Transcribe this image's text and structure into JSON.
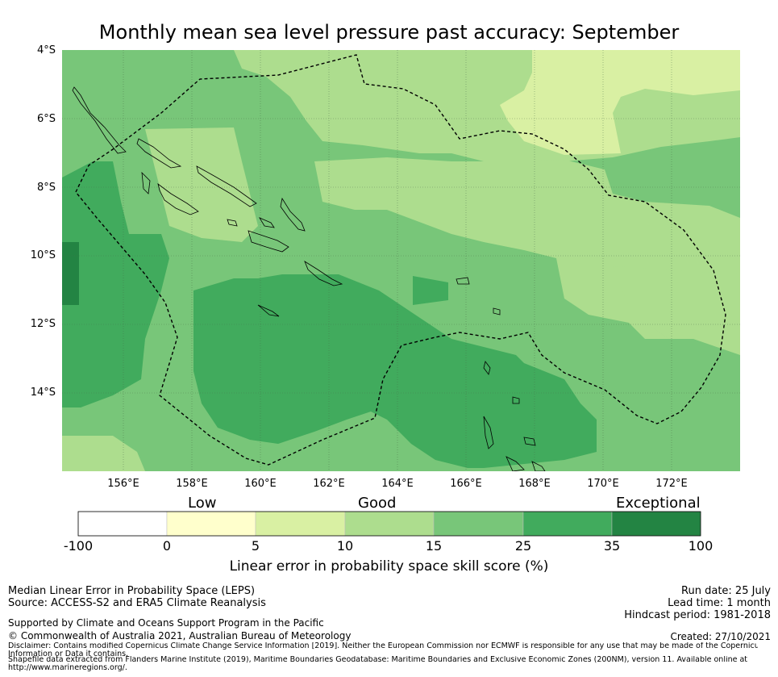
{
  "title": "Monthly mean sea level pressure past accuracy: September",
  "map": {
    "lat_labels": [
      "4°S",
      "6°S",
      "8°S",
      "10°S",
      "12°S",
      "14°S"
    ],
    "lon_labels": [
      "156°E",
      "158°E",
      "160°E",
      "162°E",
      "164°E",
      "166°E",
      "168°E",
      "170°E",
      "172°E"
    ],
    "lon_range": [
      154.0,
      174.0
    ],
    "lat_range": [
      -16.3,
      -4.0
    ]
  },
  "colorbar": {
    "categories": [
      "Low",
      "Good",
      "Exceptional"
    ],
    "ticks": [
      "-100",
      "0",
      "5",
      "10",
      "15",
      "25",
      "35",
      "100"
    ],
    "colors": [
      "#ffffff",
      "#ffffcc",
      "#d9f0a3",
      "#addd8e",
      "#78c679",
      "#41ab5d",
      "#238443"
    ],
    "label": "Linear error in probability space skill score (%)"
  },
  "footer": {
    "left_line1": "Median Linear Error in Probability Space (LEPS)",
    "left_line2": "Source: ACCESS-S2 and ERA5 Climate Reanalysis",
    "supported": "Supported by Climate and Oceans Support Program in the Pacific",
    "copyright": "© Commonwealth of Australia 2021, Australian Bureau of Meteorology",
    "disclaimer1": "Disclaimer: Contains modified Copernicus Climate Change Service Information [2019]. Neither the European Commission nor ECMWF is responsible for any use that may be made of the Copernicus",
    "disclaimer2": "Information or Data it contains.",
    "shapefile1": "Shapefile data extracted from Flanders Marine Institute (2019), Maritime Boundaries Geodatabase: Maritime Boundaries and Exclusive Economic Zones (200NM), version 11. Available online at",
    "shapefile2": "http://www.marineregions.org/.",
    "run_date": "Run date: 25 July",
    "lead_time": "Lead time: 1 month",
    "hindcast": "Hindcast period: 1981-2018",
    "created": "Created: 27/10/2021"
  }
}
